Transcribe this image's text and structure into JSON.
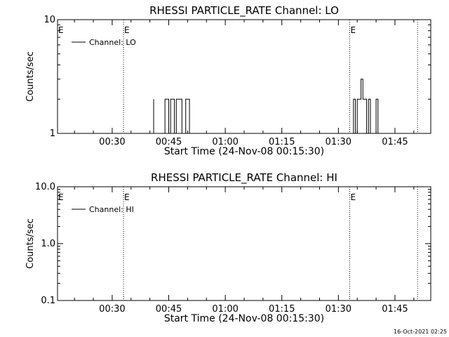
{
  "timestamp": "16-Oct-2021 02:25",
  "chart_data": [
    {
      "type": "line",
      "title": "RHESSI PARTICLE_RATE Channel: LO",
      "xlabel": "Start Time (24-Nov-08 00:15:30)",
      "ylabel": "Counts/sec",
      "yscale": "log",
      "ylim": [
        1,
        10
      ],
      "y_tick_labels": [
        "1",
        "10"
      ],
      "xlim": [
        "00:15:30",
        "01:54:30"
      ],
      "x_tick_labels": [
        "00:30",
        "00:45",
        "01:00",
        "01:15",
        "01:30",
        "01:45"
      ],
      "legend": {
        "label": "Channel: LO",
        "placement": "top-left"
      },
      "event_lines": [
        {
          "time": "00:33:00",
          "label": "E"
        },
        {
          "time": "01:33:00",
          "label": "E"
        },
        {
          "time": "01:51:00",
          "label": ""
        }
      ],
      "series": [
        {
          "name": "Channel: LO",
          "points": [
            [
              "00:40:00",
              0
            ],
            [
              "00:41:00",
              0
            ],
            [
              "00:41:00",
              2
            ],
            [
              "00:41:00",
              0
            ],
            [
              "00:41:30",
              0
            ],
            [
              "00:44:00",
              0
            ],
            [
              "00:44:00",
              2
            ],
            [
              "00:45:00",
              2
            ],
            [
              "00:45:00",
              1
            ],
            [
              "00:45:30",
              1
            ],
            [
              "00:45:30",
              2
            ],
            [
              "00:46:30",
              2
            ],
            [
              "00:46:30",
              0
            ],
            [
              "00:47:00",
              0
            ],
            [
              "00:47:00",
              2
            ],
            [
              "00:48:30",
              2
            ],
            [
              "00:48:30",
              1
            ],
            [
              "00:49:00",
              1
            ],
            [
              "00:49:00",
              0
            ],
            [
              "00:49:30",
              0
            ],
            [
              "00:49:30",
              2
            ],
            [
              "00:50:30",
              2
            ],
            [
              "00:50:30",
              0
            ],
            [
              "01:34:00",
              0
            ],
            [
              "01:34:00",
              2
            ],
            [
              "01:34:30",
              2
            ],
            [
              "01:34:30",
              0
            ],
            [
              "01:35:00",
              0
            ],
            [
              "01:35:00",
              2
            ],
            [
              "01:36:00",
              2
            ],
            [
              "01:36:00",
              3
            ],
            [
              "01:36:30",
              3
            ],
            [
              "01:36:30",
              2
            ],
            [
              "01:37:30",
              2
            ],
            [
              "01:37:30",
              0
            ],
            [
              "01:38:00",
              0
            ],
            [
              "01:38:00",
              2
            ],
            [
              "01:38:30",
              2
            ],
            [
              "01:38:30",
              0
            ],
            [
              "01:40:00",
              0
            ],
            [
              "01:40:00",
              2
            ],
            [
              "01:40:30",
              2
            ],
            [
              "01:40:30",
              0
            ]
          ]
        }
      ]
    },
    {
      "type": "line",
      "title": "RHESSI PARTICLE_RATE Channel: HI",
      "xlabel": "Start Time (24-Nov-08 00:15:30)",
      "ylabel": "Counts/sec",
      "yscale": "log",
      "ylim": [
        0.1,
        10
      ],
      "y_tick_labels": [
        "0.1",
        "1.0",
        "10.0"
      ],
      "xlim": [
        "00:15:30",
        "01:54:30"
      ],
      "x_tick_labels": [
        "00:30",
        "00:45",
        "01:00",
        "01:15",
        "01:30",
        "01:45"
      ],
      "legend": {
        "label": "Channel: HI",
        "placement": "top-left"
      },
      "event_lines": [
        {
          "time": "00:33:00",
          "label": "E"
        },
        {
          "time": "01:33:00",
          "label": "E"
        },
        {
          "time": "01:51:00",
          "label": ""
        }
      ],
      "series": [
        {
          "name": "Channel: HI",
          "points": []
        }
      ]
    }
  ]
}
